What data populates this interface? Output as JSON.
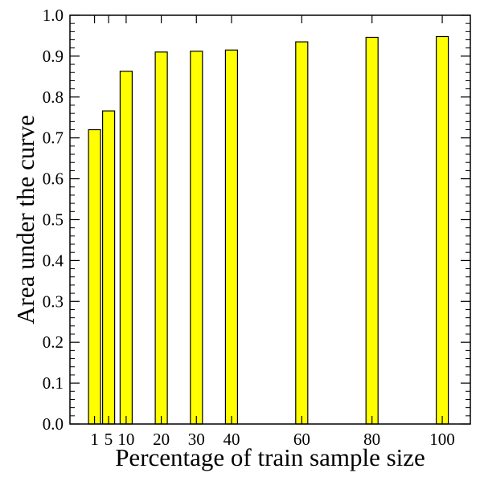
{
  "chart_data": {
    "type": "bar",
    "title": "",
    "xlabel": "Percentage of train sample size",
    "ylabel": "Area under the curve",
    "x": [
      1,
      5,
      10,
      20,
      30,
      40,
      60,
      80,
      100
    ],
    "x_tick_labels": [
      "1",
      "5",
      "10",
      "20",
      "30",
      "40",
      "60",
      "80",
      "100"
    ],
    "values": [
      0.72,
      0.766,
      0.863,
      0.91,
      0.912,
      0.915,
      0.935,
      0.946,
      0.948
    ],
    "xlim": [
      -6,
      108
    ],
    "ylim": [
      0.0,
      1.0
    ],
    "y_tick_labels": [
      "0.0",
      "0.1",
      "0.2",
      "0.3",
      "0.4",
      "0.5",
      "0.6",
      "0.7",
      "0.8",
      "0.9",
      "1.0"
    ],
    "y_ticks": [
      0.0,
      0.1,
      0.2,
      0.3,
      0.4,
      0.5,
      0.6,
      0.7,
      0.8,
      0.9,
      1.0
    ],
    "y_minor_step": 0.02,
    "grid": false,
    "legend": "none",
    "bar_color": "#ffff00",
    "bar_edge_color": "#000000"
  }
}
